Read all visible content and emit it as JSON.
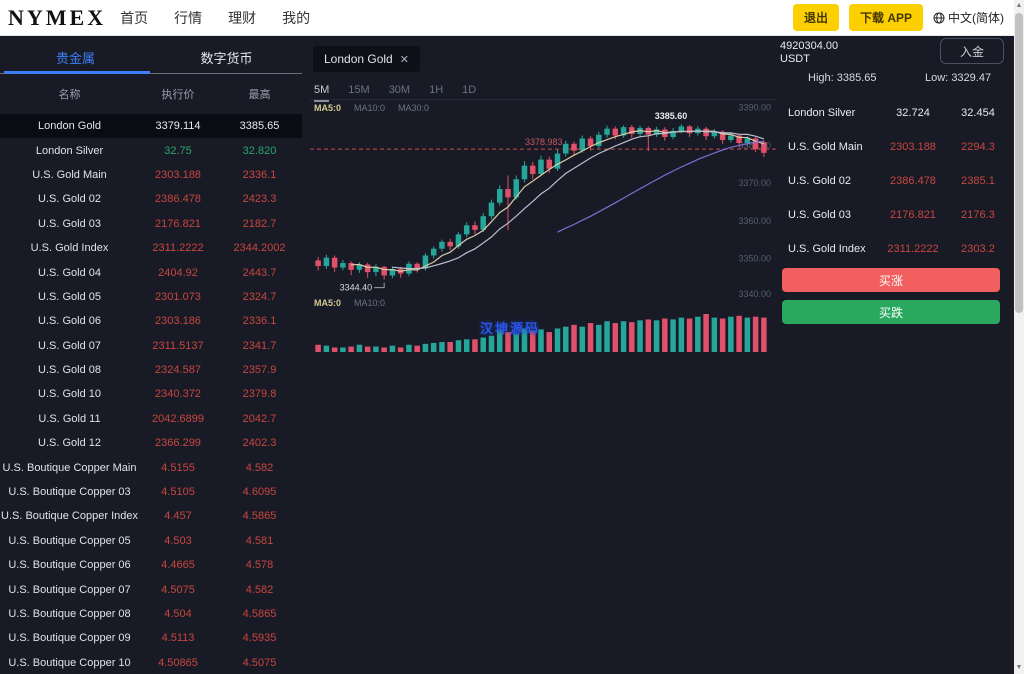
{
  "topbar": {
    "logo": "NYMEX",
    "nav": [
      "首页",
      "行情",
      "理财",
      "我的"
    ],
    "logout_button": "退出",
    "download_button": "下载 APP",
    "language": "中文(简体)"
  },
  "sidebar": {
    "tabs": [
      {
        "label": "贵金属",
        "active": true
      },
      {
        "label": "数字货币",
        "active": false
      }
    ],
    "columns": [
      "名称",
      "执行价",
      "最高"
    ],
    "rows": [
      {
        "name": "London Gold",
        "exec": "3379.114",
        "high": "3385.65",
        "color": "white",
        "selected": true
      },
      {
        "name": "London Silver",
        "exec": "32.75",
        "high": "32.820",
        "color": "green"
      },
      {
        "name": "U.S. Gold Main",
        "exec": "2303.188",
        "high": "2336.1",
        "color": "red"
      },
      {
        "name": "U.S. Gold 02",
        "exec": "2386.478",
        "high": "2423.3",
        "color": "red"
      },
      {
        "name": "U.S. Gold 03",
        "exec": "2176.821",
        "high": "2182.7",
        "color": "red"
      },
      {
        "name": "U.S. Gold Index",
        "exec": "2311.2222",
        "high": "2344.2002",
        "color": "red"
      },
      {
        "name": "U.S. Gold 04",
        "exec": "2404.92",
        "high": "2443.7",
        "color": "red"
      },
      {
        "name": "U.S. Gold 05",
        "exec": "2301.073",
        "high": "2324.7",
        "color": "red"
      },
      {
        "name": "U.S. Gold 06",
        "exec": "2303.186",
        "high": "2336.1",
        "color": "red"
      },
      {
        "name": "U.S. Gold 07",
        "exec": "2311.5137",
        "high": "2341.7",
        "color": "red"
      },
      {
        "name": "U.S. Gold 08",
        "exec": "2324.587",
        "high": "2357.9",
        "color": "red"
      },
      {
        "name": "U.S. Gold 10",
        "exec": "2340.372",
        "high": "2379.8",
        "color": "red"
      },
      {
        "name": "U.S. Gold 11",
        "exec": "2042.6899",
        "high": "2042.7",
        "color": "red"
      },
      {
        "name": "U.S. Gold 12",
        "exec": "2366.299",
        "high": "2402.3",
        "color": "red"
      },
      {
        "name": "U.S. Boutique Copper Main",
        "exec": "4.5155",
        "high": "4.582",
        "color": "red"
      },
      {
        "name": "U.S. Boutique Copper 03",
        "exec": "4.5105",
        "high": "4.6095",
        "color": "red"
      },
      {
        "name": "U.S. Boutique Copper Index",
        "exec": "4.457",
        "high": "4.5865",
        "color": "red"
      },
      {
        "name": "U.S. Boutique Copper 05",
        "exec": "4.503",
        "high": "4.581",
        "color": "red"
      },
      {
        "name": "U.S. Boutique Copper 06",
        "exec": "4.4665",
        "high": "4.578",
        "color": "red"
      },
      {
        "name": "U.S. Boutique Copper 07",
        "exec": "4.5075",
        "high": "4.582",
        "color": "red"
      },
      {
        "name": "U.S. Boutique Copper 08",
        "exec": "4.504",
        "high": "4.5865",
        "color": "red"
      },
      {
        "name": "U.S. Boutique Copper 09",
        "exec": "4.5113",
        "high": "4.5935",
        "color": "red"
      },
      {
        "name": "U.S. Boutique Copper 10",
        "exec": "4.50865",
        "high": "4.5075",
        "color": "red"
      }
    ]
  },
  "chart": {
    "symbol_tab": "London Gold",
    "close_icon": "✕",
    "intervals": [
      {
        "label": "5M",
        "active": true
      },
      {
        "label": "15M",
        "active": false
      },
      {
        "label": "30M",
        "active": false
      },
      {
        "label": "1H",
        "active": false
      },
      {
        "label": "1D",
        "active": false
      }
    ],
    "watermark": "汉坤源码"
  },
  "chart_data": {
    "type": "candlestick",
    "title": "London Gold 5M",
    "legend_position": "top-left",
    "grid": false,
    "y_axis_labels": [
      "3390.00",
      "3380.00",
      "3370.00",
      "3360.00",
      "3350.00",
      "3340.00"
    ],
    "y_domain": [
      3339,
      3392
    ],
    "price_line": {
      "value": 3378.983,
      "label": "3378.983"
    },
    "low_annotation_label": "3344.40",
    "high_annotation_label": "3385.60",
    "ma_labels_main": [
      "MA5:0",
      "MA10:0",
      "MA30:0"
    ],
    "ma_labels_volume": [
      "MA5:0",
      "MA10:0"
    ],
    "candles_format": [
      "open",
      "close",
      "low",
      "high",
      "volume"
    ],
    "candles": [
      [
        3349.5,
        3348.0,
        3346.8,
        3350.4,
        8
      ],
      [
        3348.0,
        3350.2,
        3347.2,
        3351.0,
        7
      ],
      [
        3350.2,
        3347.6,
        3346.5,
        3350.8,
        5
      ],
      [
        3347.6,
        3348.8,
        3346.9,
        3349.6,
        5
      ],
      [
        3348.8,
        3347.0,
        3345.6,
        3349.2,
        6
      ],
      [
        3347.0,
        3348.4,
        3346.2,
        3349.0,
        8
      ],
      [
        3348.4,
        3346.4,
        3344.9,
        3348.9,
        6
      ],
      [
        3346.4,
        3347.8,
        3345.3,
        3348.5,
        6
      ],
      [
        3347.8,
        3345.5,
        3344.4,
        3348.0,
        5
      ],
      [
        3345.5,
        3347.2,
        3344.8,
        3347.9,
        7
      ],
      [
        3347.2,
        3346.0,
        3344.9,
        3347.8,
        5
      ],
      [
        3346.0,
        3348.6,
        3345.4,
        3349.2,
        8
      ],
      [
        3348.6,
        3347.4,
        3346.3,
        3349.0,
        7
      ],
      [
        3347.4,
        3350.8,
        3346.8,
        3351.4,
        9
      ],
      [
        3350.8,
        3352.6,
        3350.0,
        3353.2,
        10
      ],
      [
        3352.6,
        3354.4,
        3351.8,
        3355.0,
        11
      ],
      [
        3354.4,
        3353.2,
        3352.2,
        3355.2,
        11
      ],
      [
        3353.2,
        3356.4,
        3352.6,
        3357.0,
        13
      ],
      [
        3356.4,
        3358.8,
        3355.6,
        3359.6,
        14
      ],
      [
        3358.8,
        3357.6,
        3356.4,
        3359.8,
        14
      ],
      [
        3357.6,
        3361.2,
        3357.0,
        3362.0,
        16
      ],
      [
        3361.2,
        3364.8,
        3360.4,
        3365.6,
        18
      ],
      [
        3364.8,
        3368.4,
        3364.0,
        3369.4,
        24
      ],
      [
        3368.4,
        3366.2,
        3357.5,
        3372.0,
        22
      ],
      [
        3366.2,
        3371.0,
        3365.6,
        3372.0,
        20
      ],
      [
        3371.0,
        3374.6,
        3370.2,
        3375.8,
        26
      ],
      [
        3374.6,
        3372.4,
        3371.0,
        3375.6,
        24
      ],
      [
        3372.4,
        3376.2,
        3371.8,
        3377.2,
        25
      ],
      [
        3376.2,
        3373.8,
        3372.6,
        3377.0,
        22
      ],
      [
        3373.8,
        3377.8,
        3373.2,
        3378.8,
        26
      ],
      [
        3377.8,
        3380.4,
        3377.0,
        3381.2,
        28
      ],
      [
        3380.4,
        3378.6,
        3377.4,
        3381.0,
        30
      ],
      [
        3378.6,
        3381.8,
        3378.0,
        3382.6,
        28
      ],
      [
        3381.8,
        3379.8,
        3378.6,
        3382.4,
        32
      ],
      [
        3379.8,
        3382.8,
        3379.2,
        3383.6,
        30
      ],
      [
        3382.8,
        3384.4,
        3382.0,
        3385.2,
        34
      ],
      [
        3384.4,
        3382.6,
        3381.6,
        3385.0,
        32
      ],
      [
        3382.6,
        3384.8,
        3382.0,
        3385.3,
        34
      ],
      [
        3384.8,
        3383.0,
        3382.0,
        3385.4,
        33
      ],
      [
        3383.0,
        3384.6,
        3382.4,
        3385.2,
        35
      ],
      [
        3384.6,
        3382.8,
        3378.5,
        3385.0,
        36
      ],
      [
        3382.8,
        3384.2,
        3382.2,
        3384.9,
        35
      ],
      [
        3384.2,
        3382.2,
        3381.2,
        3384.8,
        37
      ],
      [
        3382.2,
        3383.8,
        3381.6,
        3384.6,
        36
      ],
      [
        3383.8,
        3385.0,
        3383.2,
        3385.6,
        38
      ],
      [
        3385.0,
        3383.2,
        3382.2,
        3385.4,
        37
      ],
      [
        3383.2,
        3384.4,
        3382.6,
        3385.1,
        39
      ],
      [
        3384.4,
        3382.4,
        3381.4,
        3384.9,
        42
      ],
      [
        3382.4,
        3383.6,
        3381.8,
        3384.3,
        38
      ],
      [
        3383.6,
        3381.4,
        3380.4,
        3384.0,
        37
      ],
      [
        3381.4,
        3382.6,
        3380.8,
        3383.3,
        39
      ],
      [
        3382.6,
        3380.6,
        3379.6,
        3383.0,
        40
      ],
      [
        3380.6,
        3381.8,
        3380.0,
        3382.4,
        38
      ],
      [
        3381.8,
        3379.0,
        3378.2,
        3382.2,
        39
      ],
      [
        3380.8,
        3378.0,
        3376.9,
        3381.3,
        38
      ]
    ],
    "colors": {
      "up": "#26a69a",
      "down": "#e0506b",
      "ma5": "#d8cda6",
      "ma10": "#b9bfcf",
      "ma30": "#7a6fd0",
      "dashed_line": "#ca4a4a",
      "axis_text": "#575e73"
    }
  },
  "account": {
    "balance": "4920304.00",
    "currency": "USDT",
    "deposit_button": "入金",
    "high_label": "High:",
    "high_value": "3385.65",
    "low_label": "Low:",
    "low_value": "3329.47"
  },
  "right_panel": {
    "quotes": [
      {
        "name": "London Silver",
        "v1": "32.724",
        "v2": "32.454",
        "color": "white"
      },
      {
        "name": "U.S. Gold Main",
        "v1": "2303.188",
        "v2": "2294.3",
        "color": "red"
      },
      {
        "name": "U.S. Gold 02",
        "v1": "2386.478",
        "v2": "2385.1",
        "color": "red"
      },
      {
        "name": "U.S. Gold 03",
        "v1": "2176.821",
        "v2": "2176.3",
        "color": "red"
      },
      {
        "name": "U.S. Gold Index",
        "v1": "2311.2222",
        "v2": "2303.2",
        "color": "red"
      }
    ],
    "buy_up_button": "买涨",
    "buy_down_button": "买跌"
  }
}
